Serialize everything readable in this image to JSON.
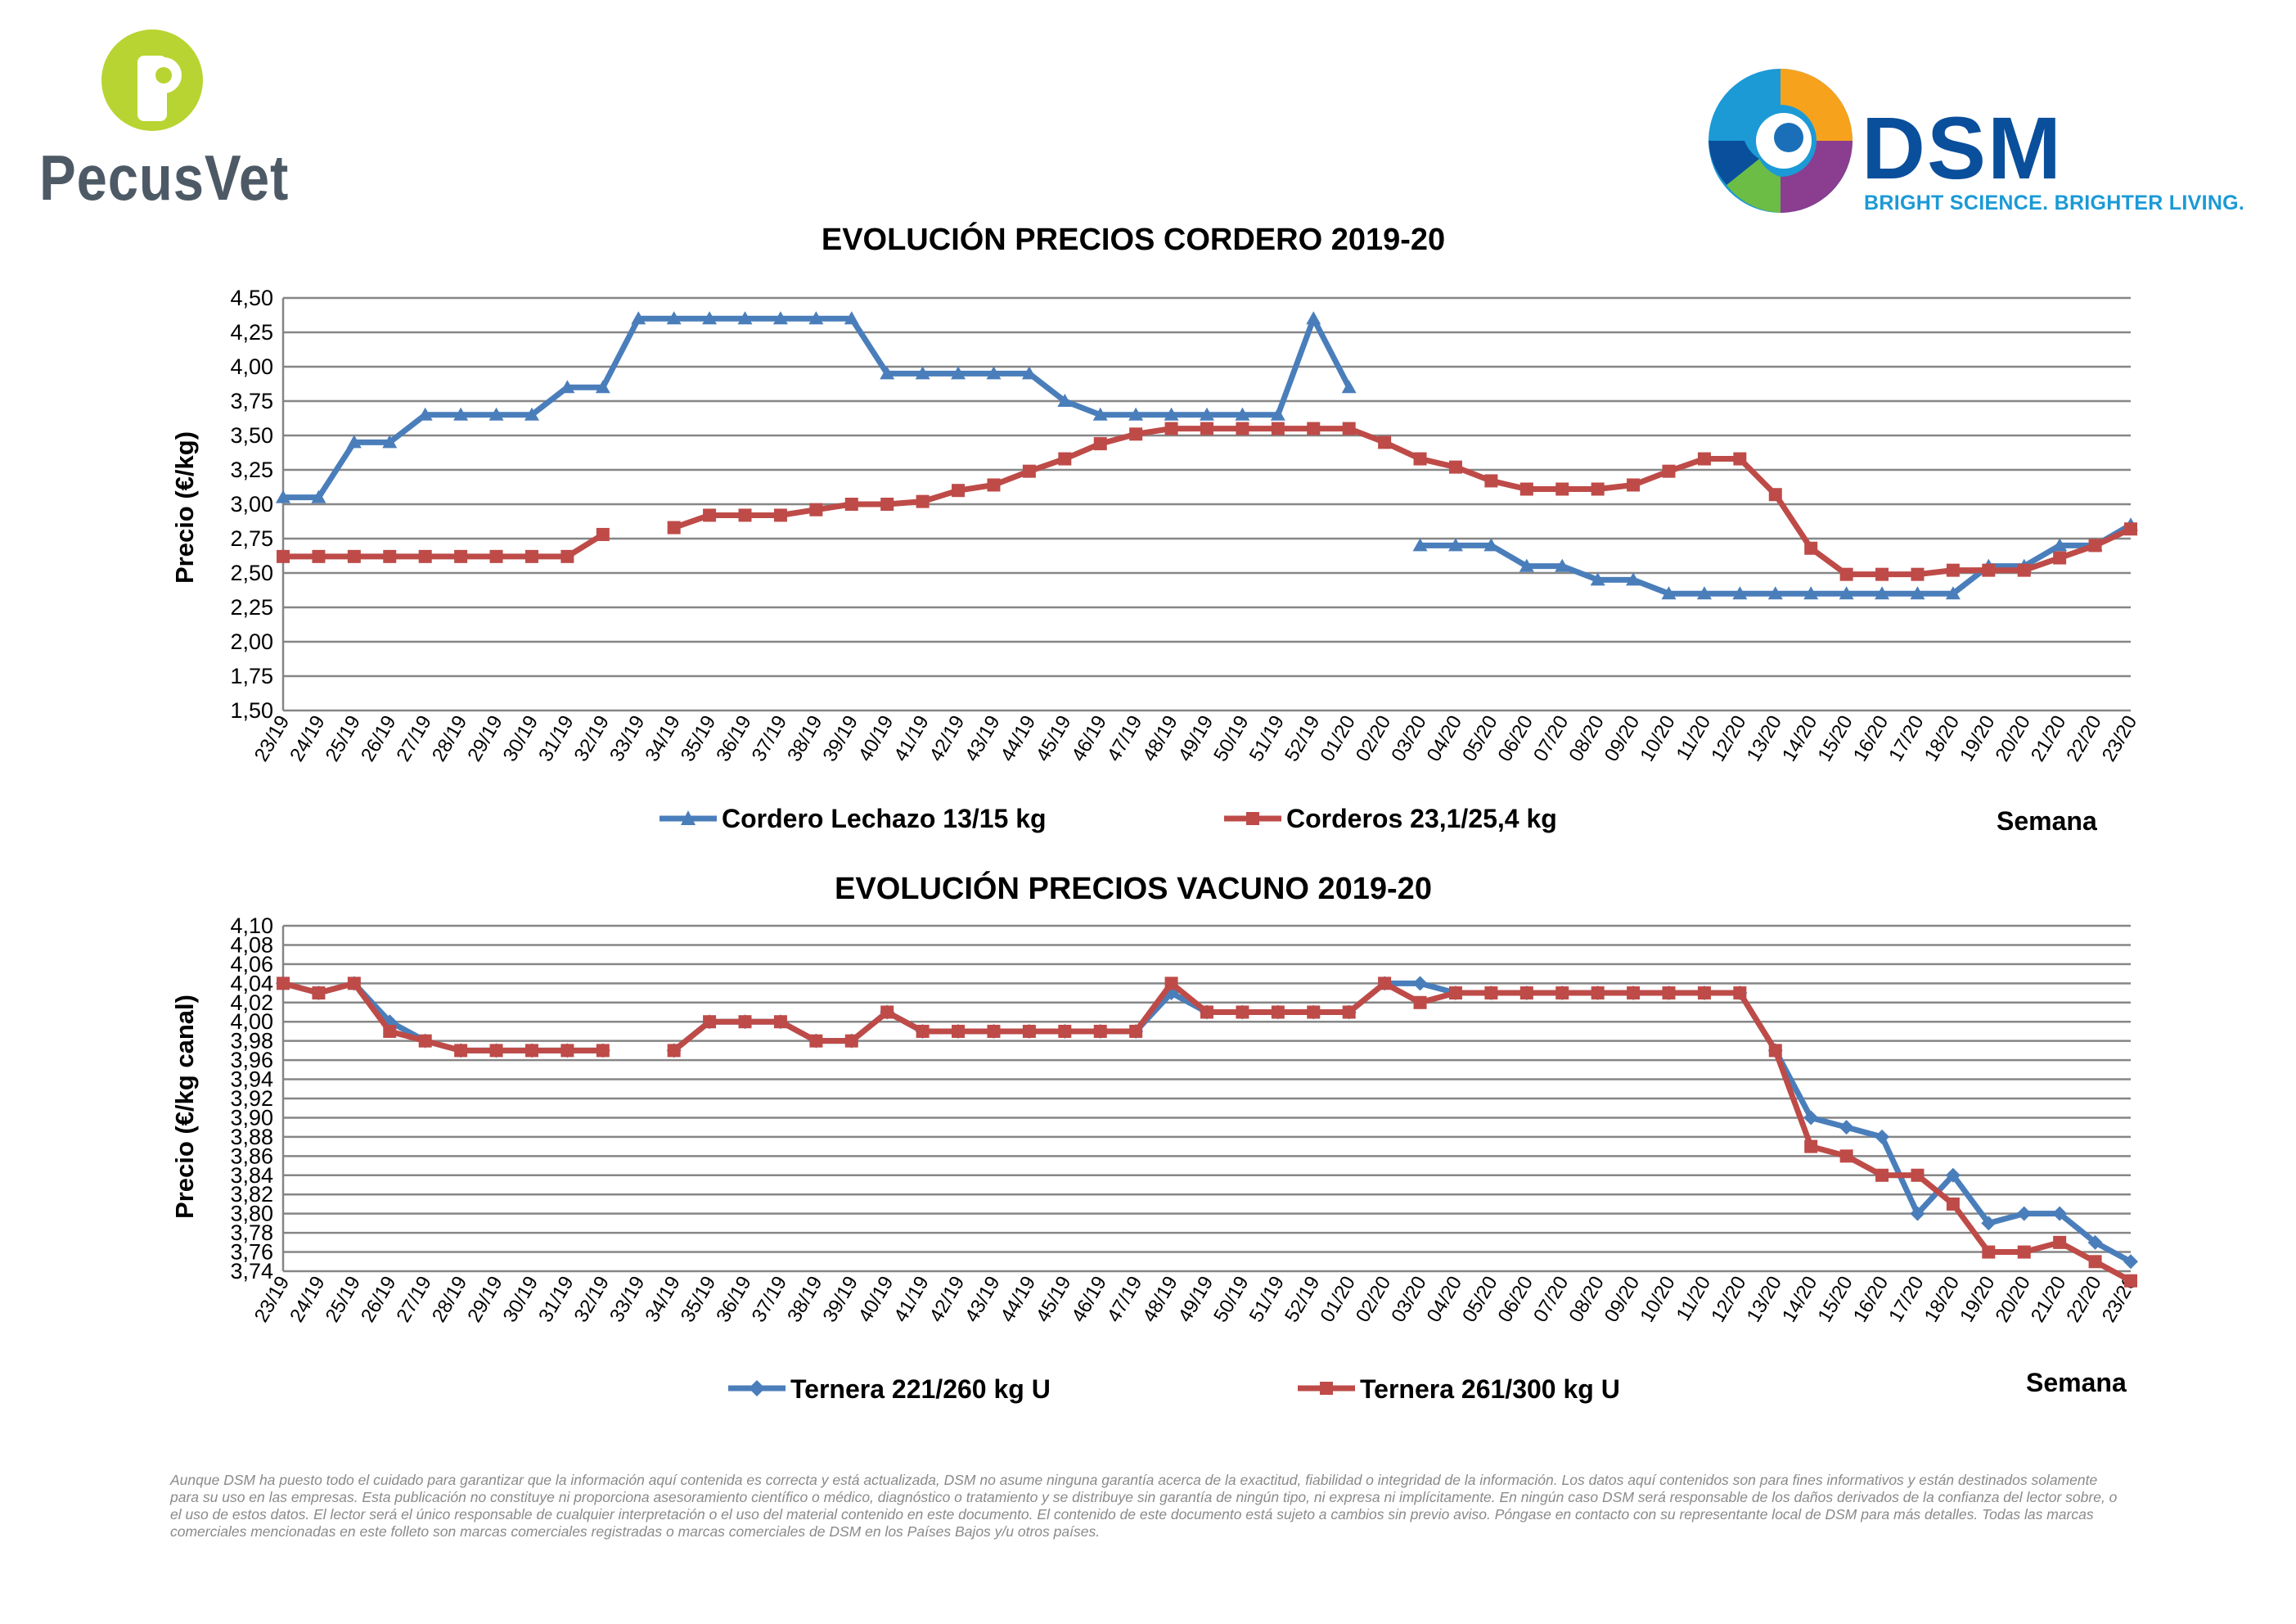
{
  "branding": {
    "left_logo_text": "PecusVet",
    "right_logo_text": "DSM",
    "right_tagline": "BRIGHT SCIENCE. BRIGHTER LIVING.",
    "colors": {
      "pecus_green": "#b8d432",
      "pecus_gray": "#4d5a66",
      "dsm_blue": "#0a4f9c",
      "dsm_light_blue": "#1b9ad6"
    }
  },
  "chart_data": [
    {
      "type": "line",
      "title": "EVOLUCIÓN PRECIOS CORDERO 2019-20",
      "ylabel": "Precio (€/kg)",
      "xlabel": "Semana",
      "ylim": [
        1.5,
        4.5
      ],
      "yticks": [
        1.5,
        1.75,
        2.0,
        2.25,
        2.5,
        2.75,
        3.0,
        3.25,
        3.5,
        3.75,
        4.0,
        4.25,
        4.5
      ],
      "ytick_labels": [
        "1,50",
        "1,75",
        "2,00",
        "2,25",
        "2,50",
        "2,75",
        "3,00",
        "3,25",
        "3,50",
        "3,75",
        "4,00",
        "4,25",
        "4,50"
      ],
      "grid": true,
      "legend_position": "bottom",
      "categories": [
        "23/19",
        "24/19",
        "25/19",
        "26/19",
        "27/19",
        "28/19",
        "29/19",
        "30/19",
        "31/19",
        "32/19",
        "33/19",
        "34/19",
        "35/19",
        "36/19",
        "37/19",
        "38/19",
        "39/19",
        "40/19",
        "41/19",
        "42/19",
        "43/19",
        "44/19",
        "45/19",
        "46/19",
        "47/19",
        "48/19",
        "49/19",
        "50/19",
        "51/19",
        "52/19",
        "01/20",
        "02/20",
        "03/20",
        "04/20",
        "05/20",
        "06/20",
        "07/20",
        "08/20",
        "09/20",
        "10/20",
        "11/20",
        "12/20",
        "13/20",
        "14/20",
        "15/20",
        "16/20",
        "17/20",
        "18/20",
        "19/20",
        "20/20",
        "21/20",
        "22/20",
        "23/20"
      ],
      "series": [
        {
          "name": "Cordero Lechazo 13/15 kg",
          "color": "#4a7ebb",
          "marker": "triangle",
          "values": [
            3.05,
            3.05,
            3.45,
            3.45,
            3.65,
            3.65,
            3.65,
            3.65,
            3.85,
            3.85,
            4.35,
            4.35,
            4.35,
            4.35,
            4.35,
            4.35,
            4.35,
            3.95,
            3.95,
            3.95,
            3.95,
            3.95,
            3.75,
            3.65,
            3.65,
            3.65,
            3.65,
            3.65,
            3.65,
            4.35,
            3.85,
            null,
            2.7,
            2.7,
            2.7,
            2.55,
            2.55,
            2.45,
            2.45,
            2.35,
            2.35,
            2.35,
            2.35,
            2.35,
            2.35,
            2.35,
            2.35,
            2.35,
            2.55,
            2.55,
            2.7,
            2.7,
            2.85
          ]
        },
        {
          "name": "Corderos 23,1/25,4 kg",
          "color": "#be4b48",
          "marker": "square",
          "values": [
            2.62,
            2.62,
            2.62,
            2.62,
            2.62,
            2.62,
            2.62,
            2.62,
            2.62,
            2.78,
            null,
            2.83,
            2.92,
            2.92,
            2.92,
            2.96,
            3.0,
            3.0,
            3.02,
            3.1,
            3.14,
            3.24,
            3.33,
            3.44,
            3.51,
            3.55,
            3.55,
            3.55,
            3.55,
            3.55,
            3.55,
            3.45,
            3.33,
            3.27,
            3.17,
            3.11,
            3.11,
            3.11,
            3.14,
            3.24,
            3.33,
            3.33,
            3.07,
            2.68,
            2.49,
            2.49,
            2.49,
            2.52,
            2.52,
            2.52,
            2.61,
            2.7,
            2.82
          ]
        }
      ]
    },
    {
      "type": "line",
      "title": "EVOLUCIÓN PRECIOS VACUNO 2019-20",
      "ylabel": "Precio (€/kg canal)",
      "xlabel": "Semana",
      "ylim": [
        3.74,
        4.1
      ],
      "yticks": [
        3.74,
        3.76,
        3.78,
        3.8,
        3.82,
        3.84,
        3.86,
        3.88,
        3.9,
        3.92,
        3.94,
        3.96,
        3.98,
        4.0,
        4.02,
        4.04,
        4.06,
        4.08,
        4.1
      ],
      "ytick_labels": [
        "3,74",
        "3,76",
        "3,78",
        "3,80",
        "3,82",
        "3,84",
        "3,86",
        "3,88",
        "3,90",
        "3,92",
        "3,94",
        "3,96",
        "3,98",
        "4,00",
        "4,02",
        "4,04",
        "4,06",
        "4,08",
        "4,10"
      ],
      "grid": true,
      "legend_position": "bottom",
      "categories": [
        "23/19",
        "24/19",
        "25/19",
        "26/19",
        "27/19",
        "28/19",
        "29/19",
        "30/19",
        "31/19",
        "32/19",
        "33/19",
        "34/19",
        "35/19",
        "36/19",
        "37/19",
        "38/19",
        "39/19",
        "40/19",
        "41/19",
        "42/19",
        "43/19",
        "44/19",
        "45/19",
        "46/19",
        "47/19",
        "48/19",
        "49/19",
        "50/19",
        "51/19",
        "52/19",
        "01/20",
        "02/20",
        "03/20",
        "04/20",
        "05/20",
        "06/20",
        "07/20",
        "08/20",
        "09/20",
        "10/20",
        "11/20",
        "12/20",
        "13/20",
        "14/20",
        "15/20",
        "16/20",
        "17/20",
        "18/20",
        "19/20",
        "20/20",
        "21/20",
        "22/20",
        "23/20"
      ],
      "series": [
        {
          "name": "Ternera 221/260 kg U",
          "color": "#4a7ebb",
          "marker": "diamond",
          "values": [
            4.04,
            4.03,
            4.04,
            4.0,
            3.98,
            3.97,
            3.97,
            3.97,
            3.97,
            3.97,
            null,
            3.97,
            4.0,
            4.0,
            4.0,
            3.98,
            3.98,
            4.01,
            3.99,
            3.99,
            3.99,
            3.99,
            3.99,
            3.99,
            3.99,
            4.03,
            4.01,
            4.01,
            4.01,
            4.01,
            4.01,
            4.04,
            4.04,
            4.03,
            4.03,
            4.03,
            4.03,
            4.03,
            4.03,
            4.03,
            4.03,
            4.03,
            3.97,
            3.9,
            3.89,
            3.88,
            3.8,
            3.84,
            3.79,
            3.8,
            3.8,
            3.77,
            3.75
          ]
        },
        {
          "name": "Ternera 261/300 kg U",
          "color": "#be4b48",
          "marker": "square",
          "values": [
            4.04,
            4.03,
            4.04,
            3.99,
            3.98,
            3.97,
            3.97,
            3.97,
            3.97,
            3.97,
            null,
            3.97,
            4.0,
            4.0,
            4.0,
            3.98,
            3.98,
            4.01,
            3.99,
            3.99,
            3.99,
            3.99,
            3.99,
            3.99,
            3.99,
            4.04,
            4.01,
            4.01,
            4.01,
            4.01,
            4.01,
            4.04,
            4.02,
            4.03,
            4.03,
            4.03,
            4.03,
            4.03,
            4.03,
            4.03,
            4.03,
            4.03,
            3.97,
            3.87,
            3.86,
            3.84,
            3.84,
            3.81,
            3.76,
            3.76,
            3.77,
            3.75,
            3.73
          ]
        }
      ]
    }
  ],
  "disclaimer": "Aunque DSM ha puesto todo el cuidado para garantizar que la información aquí contenida es correcta y está actualizada, DSM no asume ninguna garantía acerca de la exactitud, fiabilidad o integridad de la información. Los datos aquí contenidos son para fines informativos y están destinados solamente para su uso en las empresas. Esta publicación no constituye ni proporciona asesoramiento científico o médico, diagnóstico o tratamiento y se distribuye sin garantía de ningún tipo, ni expresa ni implícitamente. En ningún caso DSM será responsable de los daños derivados de la confianza del lector sobre, o el uso de estos datos. El lector será el único responsable de cualquier interpretación o el uso del material contenido en este documento. El contenido de este documento está sujeto a cambios sin previo aviso. Póngase en contacto con su representante local de DSM para más detalles. Todas las marcas comerciales mencionadas en este folleto son marcas comerciales registradas o marcas comerciales de DSM en los Países Bajos y/u otros países."
}
